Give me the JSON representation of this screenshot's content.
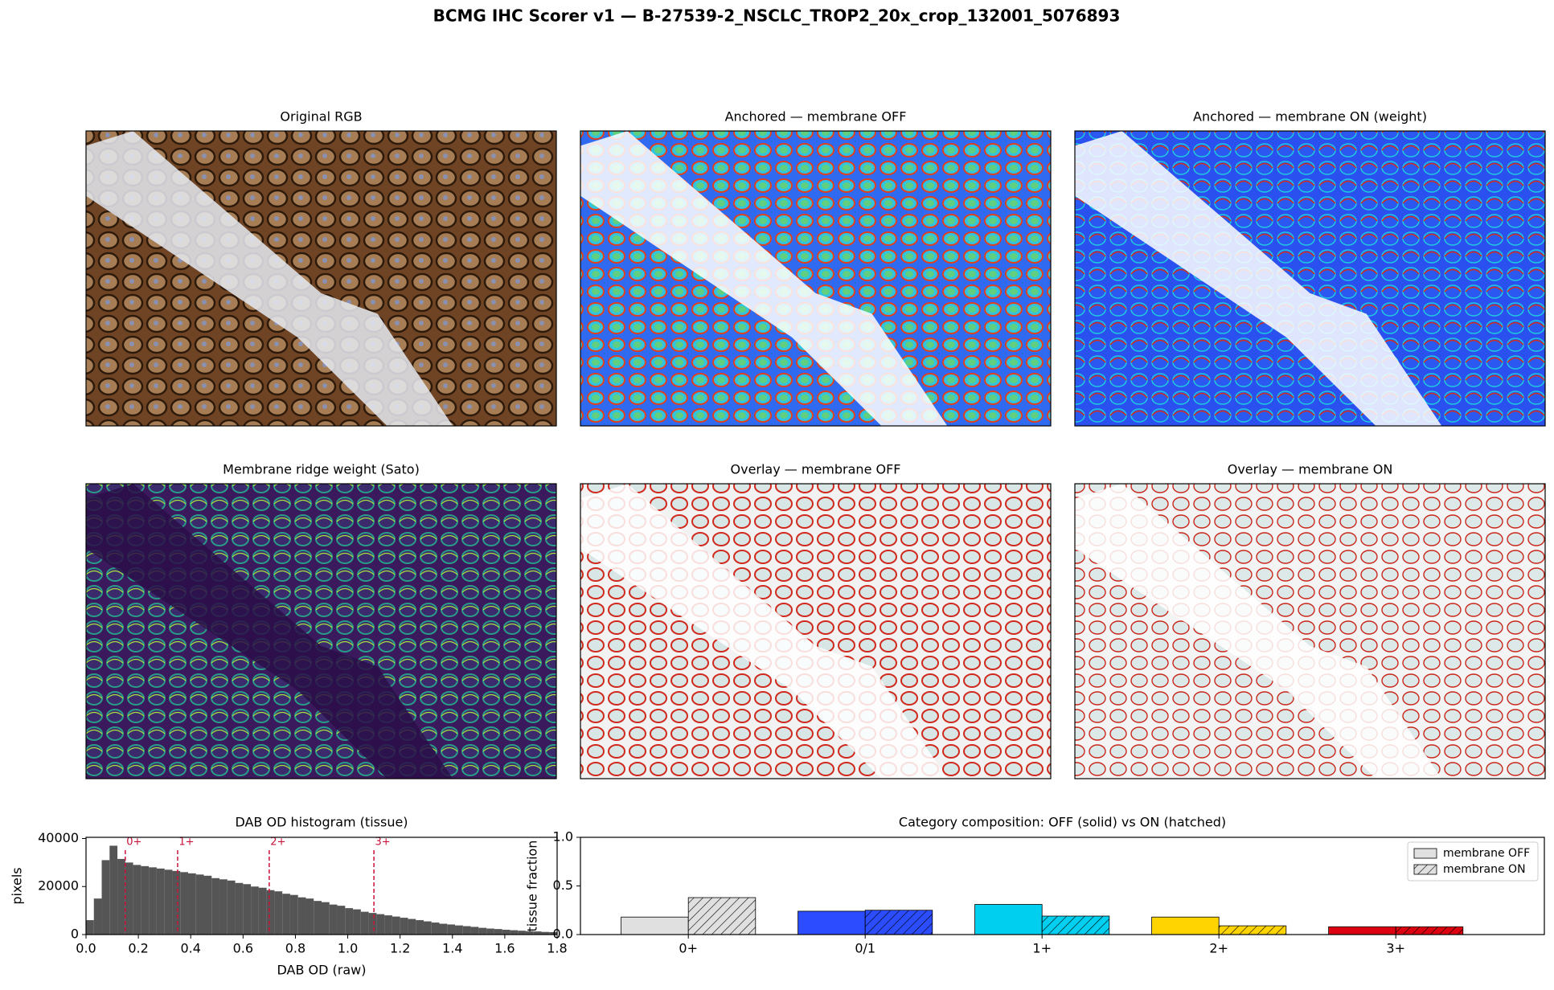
{
  "title": "BCMG IHC Scorer v1 — B-27539-2_NSCLC_TROP2_20x_crop_132001_5076893",
  "panels": [
    {
      "title": "Original RGB"
    },
    {
      "title": "Anchored — membrane OFF"
    },
    {
      "title": "Anchored — membrane ON (weight)"
    },
    {
      "title": "Membrane ridge weight (Sato)"
    },
    {
      "title": "Overlay — membrane OFF"
    },
    {
      "title": "Overlay — membrane ON"
    }
  ],
  "chart_data": [
    {
      "type": "histogram",
      "title": "DAB OD histogram (tissue)",
      "x_label": "DAB OD (raw)",
      "y_label": "pixels",
      "color": "#555555",
      "bins": [
        0,
        0.03,
        0.06,
        0.09,
        0.12,
        0.15,
        0.18,
        0.21,
        0.24,
        0.27,
        0.3,
        0.33,
        0.36,
        0.39,
        0.42,
        0.45,
        0.48,
        0.51,
        0.54,
        0.57,
        0.6,
        0.63,
        0.66,
        0.69,
        0.72,
        0.75,
        0.78,
        0.81,
        0.84,
        0.87,
        0.9,
        0.93,
        0.96,
        0.99,
        1.02,
        1.05,
        1.08,
        1.11,
        1.14,
        1.17,
        1.2,
        1.23,
        1.26,
        1.29,
        1.32,
        1.35,
        1.38,
        1.41,
        1.44,
        1.47,
        1.5,
        1.53,
        1.56,
        1.59,
        1.62,
        1.65,
        1.68,
        1.71,
        1.74,
        1.77,
        1.8
      ],
      "values": [
        6000,
        15000,
        31000,
        37000,
        31500,
        30000,
        29000,
        28500,
        28000,
        27500,
        27000,
        26500,
        26000,
        25500,
        25000,
        24500,
        23500,
        23000,
        22500,
        21500,
        21000,
        20000,
        19500,
        18500,
        18000,
        17000,
        16500,
        15500,
        15000,
        14000,
        13500,
        12500,
        12000,
        11000,
        10500,
        9500,
        9000,
        8500,
        8000,
        7500,
        7000,
        6500,
        6000,
        5500,
        5000,
        4500,
        4200,
        3800,
        3500,
        3200,
        2800,
        2500,
        2300,
        2000,
        1800,
        1600,
        1400,
        1300,
        1100,
        1000
      ],
      "thresholds": [
        {
          "value": 0.15,
          "label": "0+"
        },
        {
          "value": 0.35,
          "label": "1+"
        },
        {
          "value": 0.7,
          "label": "2+"
        },
        {
          "value": 1.1,
          "label": "3+"
        }
      ],
      "threshold_color": "#c8143c",
      "xlim": [
        0,
        1.8
      ],
      "ylim": [
        0,
        40500
      ],
      "xticks": [
        {
          "value": 0,
          "label": "0.0"
        },
        0.2,
        0.4,
        0.6,
        0.8,
        {
          "value": 1,
          "label": "1.0"
        },
        1.2,
        1.4,
        1.6,
        1.8
      ],
      "yticks": [
        0,
        20000,
        40000
      ]
    },
    {
      "type": "bar",
      "title": "Category composition: OFF (solid)  vs  ON (hatched)",
      "y_label": "tissue fraction",
      "categories": [
        "0+",
        "0/1",
        "1+",
        "2+",
        "3+"
      ],
      "colors": [
        "#e0e0e0",
        "#2b4cff",
        "#00cfef",
        "#ffd400",
        "#dd0010"
      ],
      "series": [
        {
          "name": "membrane OFF",
          "hatch": false,
          "values": [
            0.18,
            0.24,
            0.31,
            0.18,
            0.08
          ]
        },
        {
          "name": "membrane ON",
          "hatch": true,
          "values": [
            0.38,
            0.25,
            0.19,
            0.09,
            0.08
          ]
        }
      ],
      "legend": "upper right",
      "ylim": [
        0,
        1
      ],
      "yticks": [
        {
          "value": 0,
          "label": "0.0"
        },
        0.5,
        {
          "value": 1,
          "label": "1.0"
        }
      ]
    }
  ]
}
